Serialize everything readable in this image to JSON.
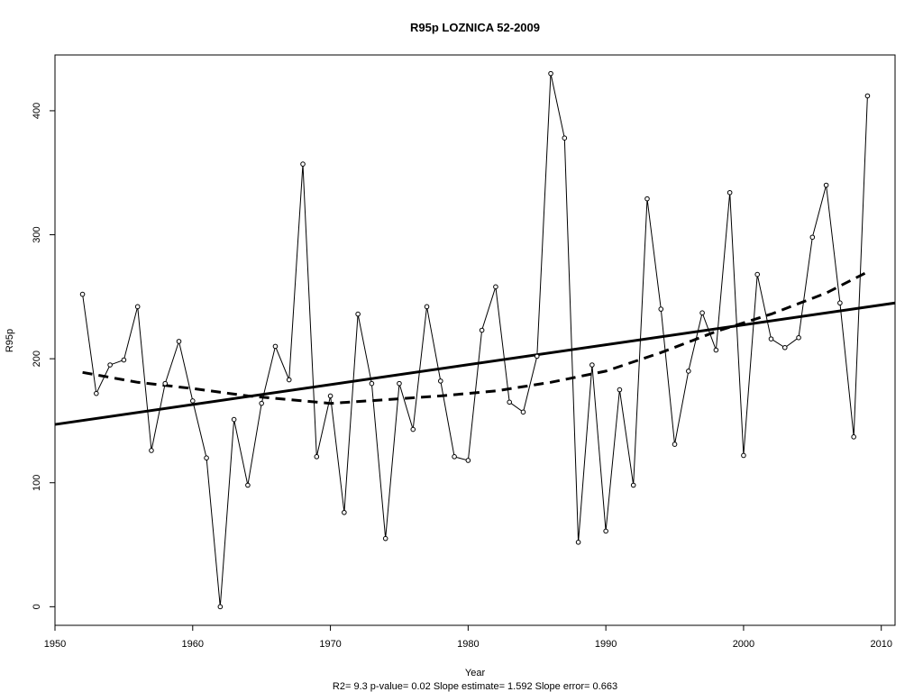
{
  "chart_data": {
    "type": "line",
    "title": "R95p    LOZNICA 52-2009",
    "xlabel": "Year",
    "ylabel": "R95p",
    "stats_text": "R2= 9.3  p-value= 0.02  Slope estimate= 1.592  Slope error= 0.663",
    "xlim": [
      1950,
      2011
    ],
    "ylim": [
      -15,
      445
    ],
    "x_ticks": [
      1950,
      1960,
      1970,
      1980,
      1990,
      2000,
      2010
    ],
    "y_ticks": [
      0,
      100,
      200,
      300,
      400
    ],
    "grid": false,
    "series": [
      {
        "style": "points-line",
        "x": [
          1952,
          1953,
          1954,
          1955,
          1956,
          1957,
          1958,
          1959,
          1960,
          1961,
          1962,
          1963,
          1964,
          1965,
          1966,
          1967,
          1968,
          1969,
          1970,
          1971,
          1972,
          1973,
          1974,
          1975,
          1976,
          1977,
          1978,
          1979,
          1980,
          1981,
          1982,
          1983,
          1984,
          1985,
          1986,
          1987,
          1988,
          1989,
          1990,
          1991,
          1992,
          1993,
          1994,
          1995,
          1996,
          1997,
          1998,
          1999,
          2000,
          2001,
          2002,
          2003,
          2004,
          2005,
          2006,
          2007,
          2008,
          2009
        ],
        "y": [
          252,
          172,
          195,
          199,
          242,
          126,
          180,
          214,
          166,
          120,
          0,
          151,
          98,
          164,
          210,
          183,
          357,
          121,
          170,
          76,
          236,
          180,
          55,
          180,
          143,
          242,
          182,
          121,
          118,
          223,
          258,
          165,
          157,
          202,
          430,
          378,
          52,
          195,
          61,
          175,
          98,
          329,
          240,
          131,
          190,
          237,
          207,
          334,
          122,
          268,
          216,
          209,
          217,
          298,
          340,
          245,
          137,
          412
        ]
      },
      {
        "style": "linear-trend",
        "x": [
          1950,
          2011
        ],
        "y": [
          147,
          245
        ]
      },
      {
        "style": "smooth-dashed",
        "x": [
          1952,
          1956,
          1960,
          1964,
          1968,
          1970,
          1974,
          1978,
          1982,
          1986,
          1990,
          1994,
          1998,
          2002,
          2006,
          2009
        ],
        "y": [
          189,
          181,
          176,
          170,
          166,
          164,
          167,
          170,
          174,
          181,
          190,
          205,
          222,
          236,
          253,
          270
        ]
      }
    ]
  }
}
